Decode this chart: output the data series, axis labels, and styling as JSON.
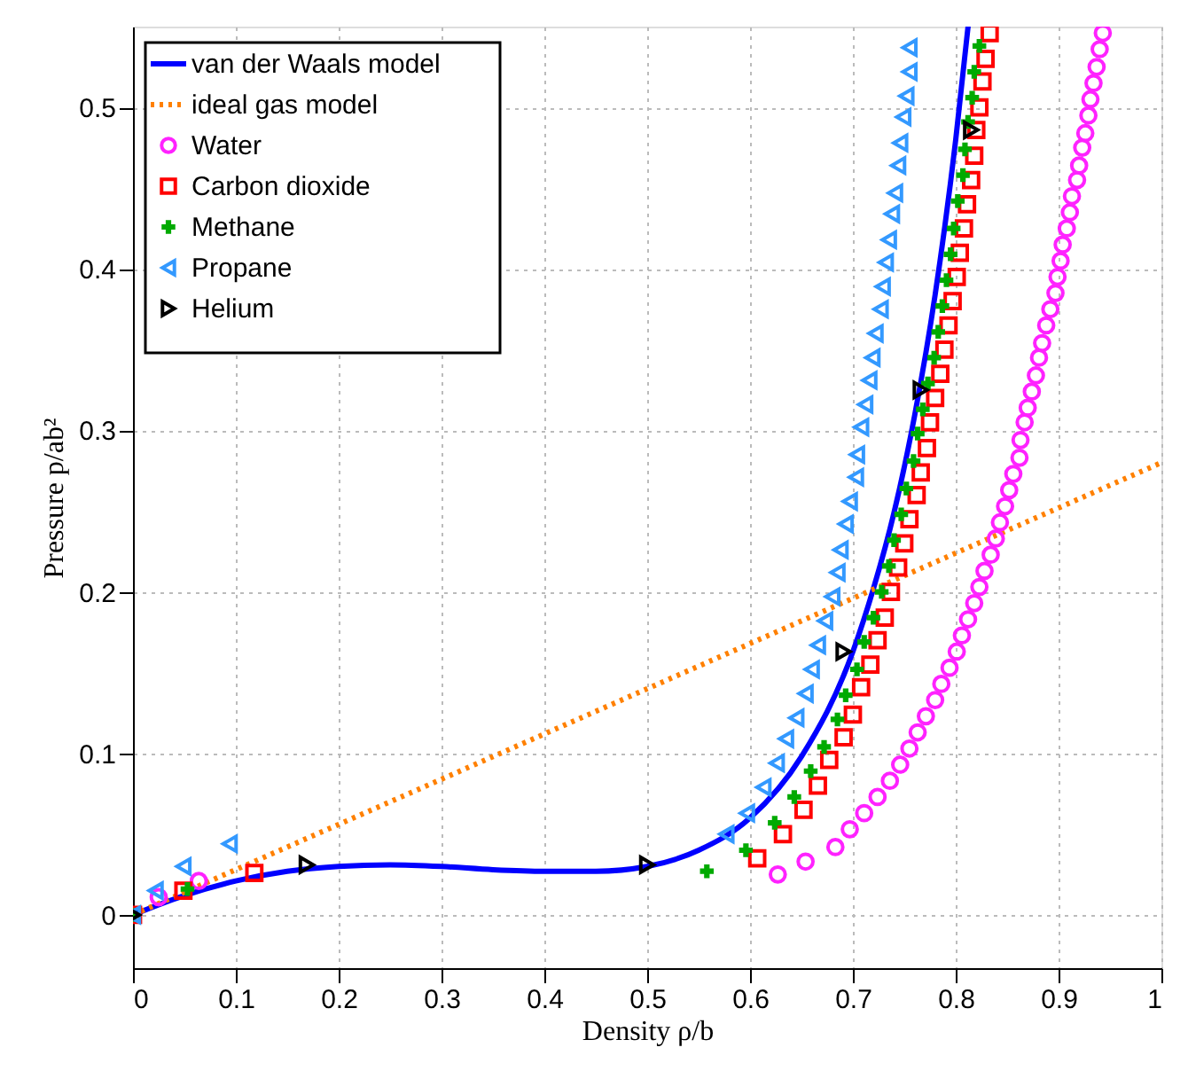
{
  "chart_data": {
    "type": "scatter",
    "xlabel": "Density ρ/b",
    "ylabel": "Pressure p/ab²",
    "xlim": [
      0,
      1
    ],
    "ylim": [
      -0.033,
      0.55
    ],
    "xticks": [
      0,
      0.1,
      0.2,
      0.3,
      0.4,
      0.5,
      0.6,
      0.7,
      0.8,
      0.9,
      1
    ],
    "yticks": [
      0,
      0.1,
      0.2,
      0.3,
      0.4,
      0.5
    ],
    "grid": true,
    "legend": "top left",
    "series": [
      {
        "name": "van der Waals model",
        "type": "line",
        "color": "#0000ff",
        "line_style": "solid",
        "marker": "none",
        "x": [
          0,
          0.05,
          0.1,
          0.15,
          0.2,
          0.25,
          0.3,
          0.35,
          0.4,
          0.45,
          0.5,
          0.55,
          0.6,
          0.65,
          0.7,
          0.72,
          0.74,
          0.76,
          0.78,
          0.8,
          0.812
        ],
        "values": [
          0,
          0.012,
          0.021,
          0.027,
          0.03,
          0.031,
          0.03,
          0.028,
          0.027,
          0.027,
          0.03,
          0.04,
          0.06,
          0.098,
          0.163,
          0.202,
          0.249,
          0.309,
          0.384,
          0.48,
          0.55
        ]
      },
      {
        "name": "ideal gas model",
        "type": "line",
        "color": "#ff8000",
        "line_style": "dotted",
        "marker": "none",
        "x": [
          0,
          1
        ],
        "values": [
          0,
          0.28
        ]
      },
      {
        "name": "Water",
        "color": "#ff22ff",
        "marker": "circle",
        "x": [
          0.025,
          0.064,
          0.627,
          0.654,
          0.683,
          0.697,
          0.711,
          0.724,
          0.736,
          0.746,
          0.755,
          0.763,
          0.771,
          0.78,
          0.786,
          0.794,
          0.801,
          0.806,
          0.812,
          0.818,
          0.823,
          0.828,
          0.834,
          0.839,
          0.843,
          0.848,
          0.852,
          0.856,
          0.862,
          0.863,
          0.867,
          0.87,
          0.874,
          0.878,
          0.881,
          0.884,
          0.888,
          0.892,
          0.897,
          0.899,
          0.902,
          0.904,
          0.908,
          0.911,
          0.913,
          0.918,
          0.92,
          0.923,
          0.926,
          0.929,
          0.931,
          0.934,
          0.937,
          0.94,
          0.943
        ],
        "values": [
          0.011,
          0.021,
          0.025,
          0.033,
          0.042,
          0.053,
          0.063,
          0.073,
          0.083,
          0.093,
          0.103,
          0.113,
          0.123,
          0.133,
          0.143,
          0.153,
          0.163,
          0.173,
          0.183,
          0.193,
          0.203,
          0.213,
          0.223,
          0.233,
          0.243,
          0.253,
          0.263,
          0.273,
          0.283,
          0.294,
          0.305,
          0.314,
          0.324,
          0.334,
          0.345,
          0.354,
          0.365,
          0.375,
          0.385,
          0.395,
          0.405,
          0.415,
          0.425,
          0.435,
          0.445,
          0.455,
          0.464,
          0.475,
          0.484,
          0.495,
          0.505,
          0.515,
          0.525,
          0.536,
          0.546
        ]
      },
      {
        "name": "Carbon dioxide",
        "color": "#ff0000",
        "marker": "square",
        "x": [
          0,
          0.049,
          0.118,
          0.607,
          0.632,
          0.652,
          0.666,
          0.677,
          0.691,
          0.7,
          0.708,
          0.717,
          0.724,
          0.731,
          0.737,
          0.744,
          0.75,
          0.755,
          0.762,
          0.766,
          0.772,
          0.775,
          0.78,
          0.785,
          0.789,
          0.793,
          0.797,
          0.801,
          0.804,
          0.808,
          0.811,
          0.815,
          0.818,
          0.82,
          0.823,
          0.826,
          0.829,
          0.833
        ],
        "values": [
          0,
          0.015,
          0.026,
          0.035,
          0.05,
          0.065,
          0.08,
          0.096,
          0.11,
          0.124,
          0.141,
          0.155,
          0.17,
          0.184,
          0.2,
          0.215,
          0.23,
          0.245,
          0.26,
          0.274,
          0.289,
          0.305,
          0.32,
          0.335,
          0.35,
          0.365,
          0.38,
          0.395,
          0.41,
          0.425,
          0.44,
          0.455,
          0.47,
          0.486,
          0.5,
          0.516,
          0.53,
          0.546
        ]
      },
      {
        "name": "Methane",
        "color": "#00aa00",
        "marker": "cross",
        "x": [
          0,
          0.053,
          0.558,
          0.596,
          0.624,
          0.643,
          0.659,
          0.672,
          0.685,
          0.693,
          0.704,
          0.711,
          0.72,
          0.728,
          0.735,
          0.74,
          0.747,
          0.752,
          0.759,
          0.763,
          0.768,
          0.773,
          0.779,
          0.783,
          0.787,
          0.791,
          0.795,
          0.798,
          0.802,
          0.807,
          0.809,
          0.812,
          0.816,
          0.818,
          0.823
        ],
        "values": [
          0,
          0.016,
          0.027,
          0.04,
          0.057,
          0.073,
          0.089,
          0.104,
          0.121,
          0.136,
          0.152,
          0.169,
          0.184,
          0.2,
          0.216,
          0.232,
          0.248,
          0.264,
          0.281,
          0.298,
          0.313,
          0.329,
          0.345,
          0.361,
          0.377,
          0.393,
          0.409,
          0.425,
          0.442,
          0.458,
          0.474,
          0.491,
          0.506,
          0.522,
          0.538
        ]
      },
      {
        "name": "Propane",
        "color": "#3399ff",
        "marker": "triangle-left",
        "x": [
          0,
          0.022,
          0.049,
          0.094,
          0.577,
          0.597,
          0.613,
          0.626,
          0.635,
          0.645,
          0.654,
          0.66,
          0.666,
          0.673,
          0.68,
          0.685,
          0.688,
          0.693,
          0.697,
          0.703,
          0.704,
          0.708,
          0.712,
          0.716,
          0.719,
          0.722,
          0.727,
          0.729,
          0.732,
          0.735,
          0.738,
          0.741,
          0.744,
          0.746,
          0.749,
          0.752,
          0.755,
          0.755
        ],
        "values": [
          0,
          0.015,
          0.03,
          0.044,
          0.05,
          0.063,
          0.079,
          0.094,
          0.109,
          0.122,
          0.137,
          0.152,
          0.167,
          0.182,
          0.197,
          0.212,
          0.226,
          0.242,
          0.256,
          0.271,
          0.285,
          0.302,
          0.316,
          0.331,
          0.345,
          0.36,
          0.375,
          0.389,
          0.404,
          0.418,
          0.434,
          0.447,
          0.464,
          0.478,
          0.494,
          0.507,
          0.522,
          0.537
        ]
      },
      {
        "name": "Helium",
        "color": "#000000",
        "marker": "triangle-right",
        "x": [
          0,
          0.169,
          0.5,
          0.691,
          0.766,
          0.815
        ],
        "values": [
          0,
          0.031,
          0.031,
          0.163,
          0.325,
          0.486
        ]
      }
    ]
  }
}
